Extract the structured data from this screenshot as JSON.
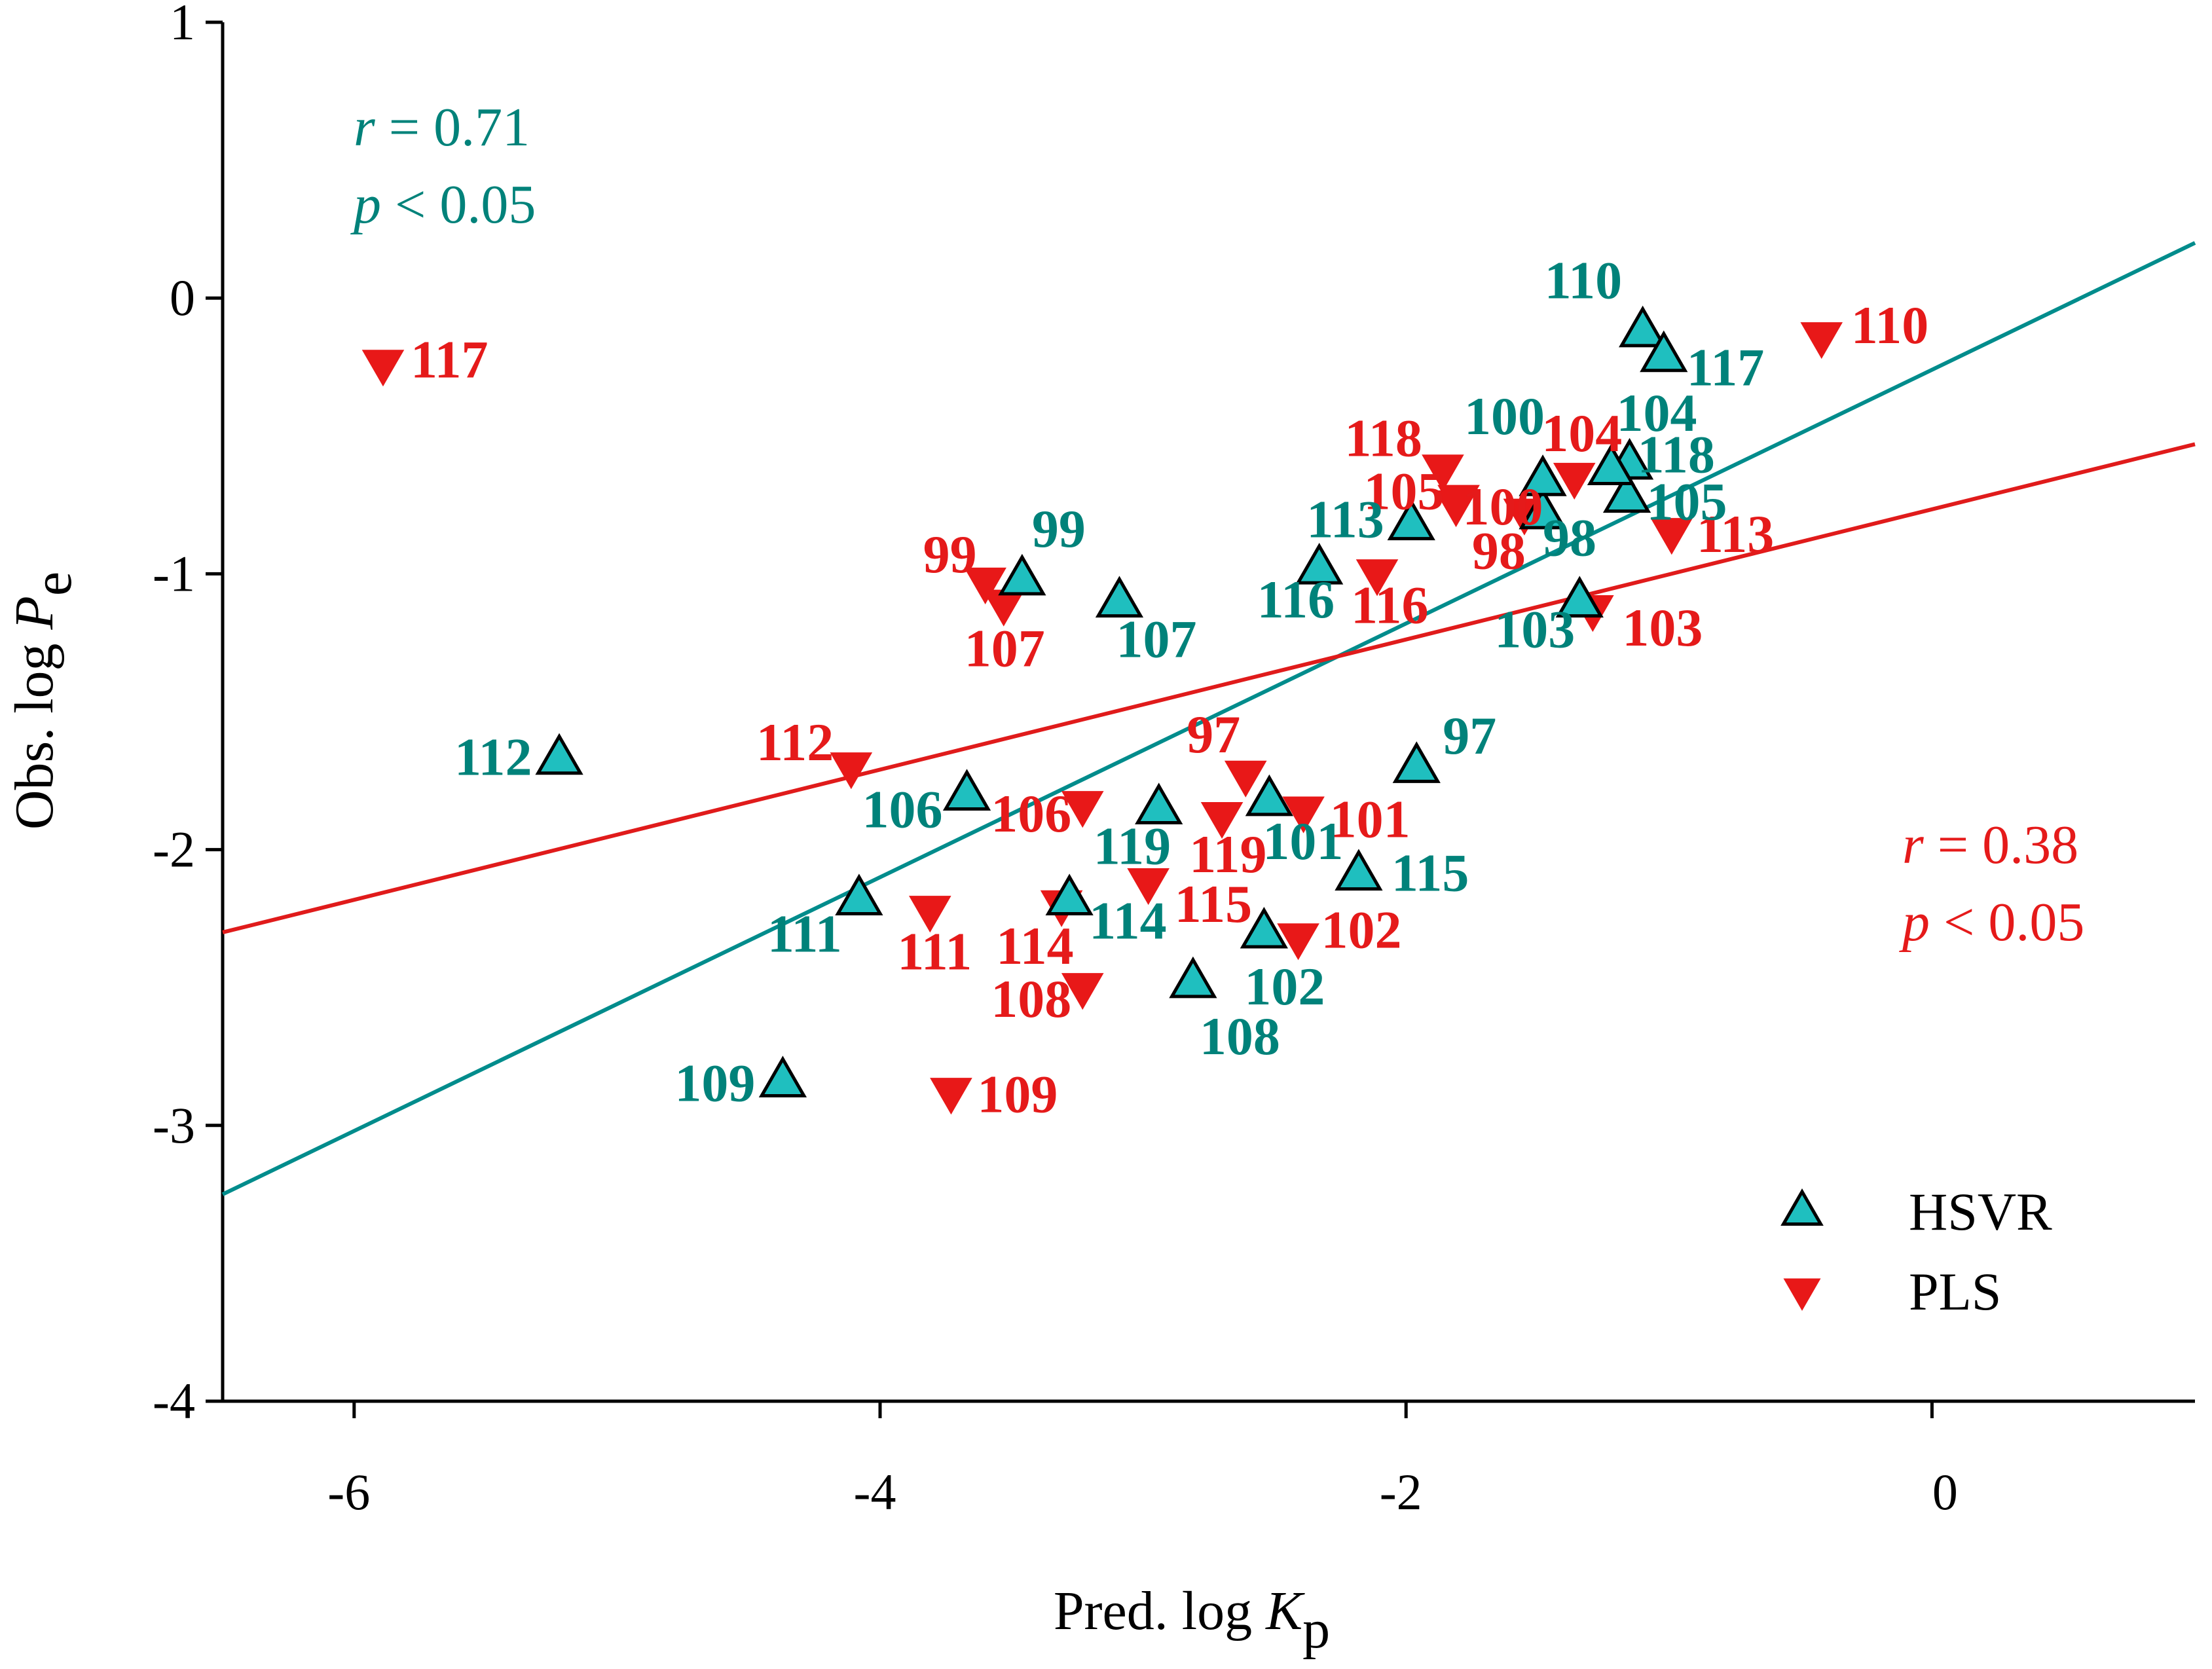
{
  "chart_data": {
    "type": "scatter",
    "xlabel": {
      "main": "Pred. log ",
      "var": "K",
      "sub": "p"
    },
    "ylabel": {
      "main": "Obs. log ",
      "var": "P",
      "sub": "e"
    },
    "xlim": [
      -6.5,
      1.0
    ],
    "ylim": [
      -4,
      1
    ],
    "xticks": [
      -6,
      -4,
      -2,
      0
    ],
    "xtick_labels": [
      "-6",
      "-4",
      "-2",
      "0"
    ],
    "yticks": [
      1,
      0,
      -1,
      -2,
      -3,
      -4
    ],
    "ytick_labels": [
      "1",
      "0",
      "-1",
      "-2",
      "-3",
      "-4"
    ],
    "grid": false,
    "legend_position": "bottom-right",
    "series": [
      {
        "name": "HSVR",
        "marker": "triangle-up",
        "color": "#1FBFBF",
        "label_color": "#00827A",
        "fit": {
          "x": [
            -6.5,
            1.0
          ],
          "y": [
            -3.25,
            0.2
          ],
          "color": "#008C8C"
        },
        "stats": {
          "r_sym": "r",
          "r_text": " = 0.71",
          "p_sym": "p",
          "p_text": " < 0.05"
        },
        "points": [
          {
            "id": "97",
            "x": -1.96,
            "y": -1.7
          },
          {
            "id": "98",
            "x": -1.48,
            "y": -0.78
          },
          {
            "id": "99",
            "x": -3.46,
            "y": -1.02
          },
          {
            "id": "100",
            "x": -1.48,
            "y": -0.66
          },
          {
            "id": "101",
            "x": -2.52,
            "y": -1.82
          },
          {
            "id": "102",
            "x": -2.54,
            "y": -2.3
          },
          {
            "id": "103",
            "x": -1.34,
            "y": -1.1
          },
          {
            "id": "104",
            "x": -1.15,
            "y": -0.6
          },
          {
            "id": "105",
            "x": -1.16,
            "y": -0.72
          },
          {
            "id": "106",
            "x": -3.67,
            "y": -1.8
          },
          {
            "id": "107",
            "x": -3.09,
            "y": -1.1
          },
          {
            "id": "108",
            "x": -2.81,
            "y": -2.48
          },
          {
            "id": "109",
            "x": -4.37,
            "y": -2.84
          },
          {
            "id": "110",
            "x": -1.1,
            "y": -0.12
          },
          {
            "id": "111",
            "x": -4.08,
            "y": -2.18
          },
          {
            "id": "112",
            "x": -5.22,
            "y": -1.67
          },
          {
            "id": "113",
            "x": -1.98,
            "y": -0.82
          },
          {
            "id": "114",
            "x": -3.28,
            "y": -2.18
          },
          {
            "id": "115",
            "x": -2.18,
            "y": -2.09
          },
          {
            "id": "116",
            "x": -2.33,
            "y": -0.98
          },
          {
            "id": "117",
            "x": -1.02,
            "y": -0.21
          },
          {
            "id": "118",
            "x": -1.22,
            "y": -0.62
          },
          {
            "id": "119",
            "x": -2.94,
            "y": -1.85
          }
        ]
      },
      {
        "name": "PLS",
        "marker": "triangle-down",
        "color": "#E81818",
        "label_color": "#E51A1A",
        "fit": {
          "x": [
            -6.5,
            1.0
          ],
          "y": [
            -2.3,
            -0.53
          ],
          "color": "#E01B1B"
        },
        "stats": {
          "r_sym": "r",
          "r_text": " = 0.38",
          "p_sym": "p",
          "p_text": " < 0.05"
        },
        "points": [
          {
            "id": "97",
            "x": -2.61,
            "y": -1.73
          },
          {
            "id": "98",
            "x": -1.55,
            "y": -0.78
          },
          {
            "id": "99",
            "x": -3.6,
            "y": -1.03
          },
          {
            "id": "100",
            "x": -1.81,
            "y": -0.75
          },
          {
            "id": "101",
            "x": -2.39,
            "y": -1.86
          },
          {
            "id": "102",
            "x": -2.41,
            "y": -2.32
          },
          {
            "id": "103",
            "x": -1.29,
            "y": -1.13
          },
          {
            "id": "104",
            "x": -1.36,
            "y": -0.65
          },
          {
            "id": "105",
            "x": -1.8,
            "y": -0.73
          },
          {
            "id": "106",
            "x": -3.23,
            "y": -1.84
          },
          {
            "id": "107",
            "x": -3.53,
            "y": -1.11
          },
          {
            "id": "108",
            "x": -3.23,
            "y": -2.5
          },
          {
            "id": "109",
            "x": -3.73,
            "y": -2.88
          },
          {
            "id": "110",
            "x": -0.42,
            "y": -0.14
          },
          {
            "id": "111",
            "x": -3.81,
            "y": -2.22
          },
          {
            "id": "112",
            "x": -4.11,
            "y": -1.7
          },
          {
            "id": "113",
            "x": -0.99,
            "y": -0.85
          },
          {
            "id": "114",
            "x": -3.31,
            "y": -2.2
          },
          {
            "id": "115",
            "x": -2.98,
            "y": -2.12
          },
          {
            "id": "116",
            "x": -2.11,
            "y": -1.0
          },
          {
            "id": "117",
            "x": -5.89,
            "y": -0.24
          },
          {
            "id": "118",
            "x": -1.86,
            "y": -0.62
          },
          {
            "id": "119",
            "x": -2.7,
            "y": -1.88
          }
        ]
      }
    ]
  }
}
